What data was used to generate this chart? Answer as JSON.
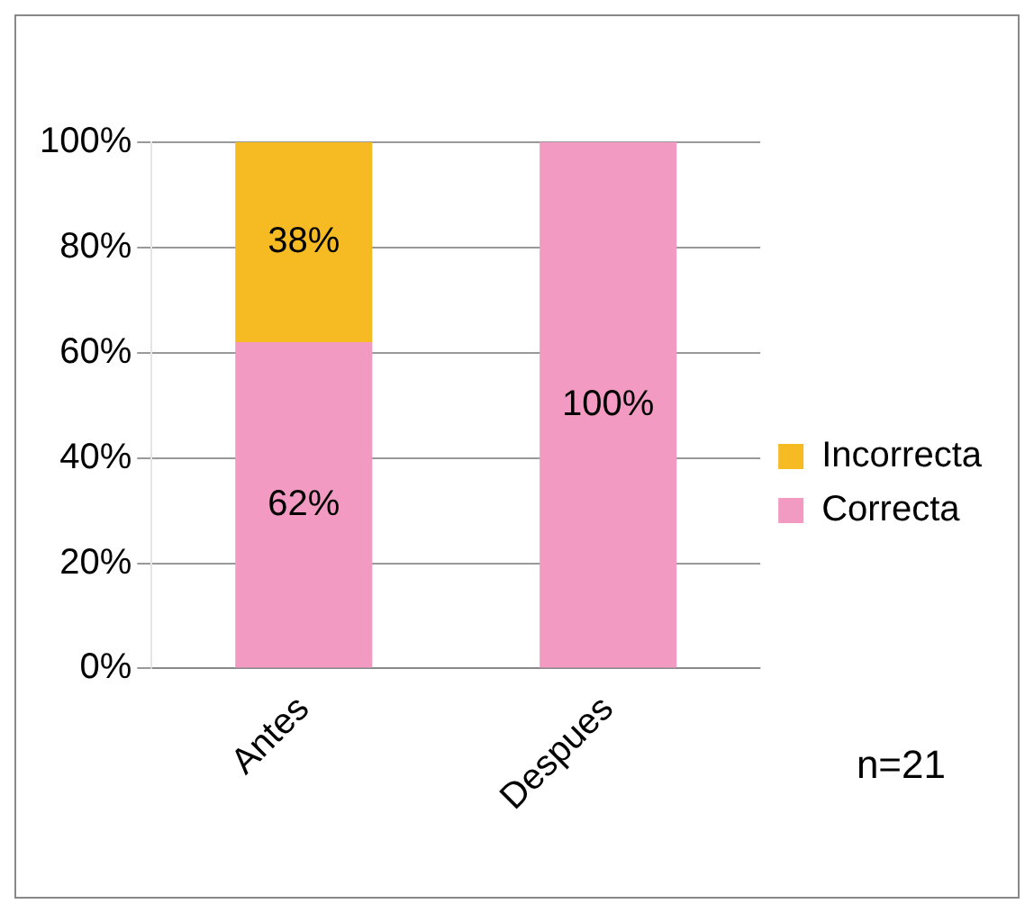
{
  "chart_data": {
    "type": "bar",
    "stacked": true,
    "categories": [
      "Antes",
      "Despues"
    ],
    "series": [
      {
        "name": "Correcta",
        "color": "#f29ac2",
        "values": [
          62,
          100
        ],
        "value_labels": [
          "62%",
          "100%"
        ]
      },
      {
        "name": "Incorrecta",
        "color": "#f6bb22",
        "values": [
          38,
          0
        ],
        "value_labels": [
          "38%",
          null
        ]
      }
    ],
    "ylim": [
      0,
      100
    ],
    "yticks": [
      {
        "value": 0,
        "label": "0%"
      },
      {
        "value": 20,
        "label": "20%"
      },
      {
        "value": 40,
        "label": "40%"
      },
      {
        "value": 60,
        "label": "60%"
      },
      {
        "value": 80,
        "label": "80%"
      },
      {
        "value": 100,
        "label": "100%"
      }
    ],
    "grid": "y",
    "legend": "right",
    "annotations": [
      "n=21"
    ]
  }
}
